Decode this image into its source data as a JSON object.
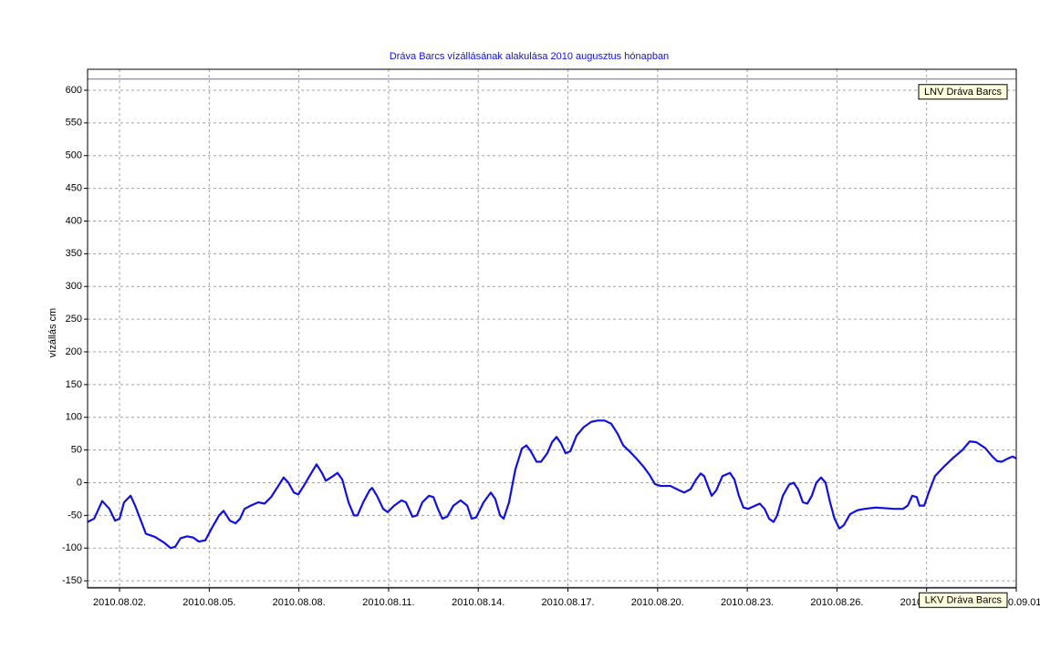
{
  "chart_data": {
    "type": "line",
    "title": "Dráva Barcs vízállásának alakulása 2010 augusztus hónapban",
    "ylabel": "vízállás cm",
    "color": "#1010e0",
    "grid": true,
    "xlim": [
      0.93,
      32
    ],
    "ylim": [
      -161,
      632
    ],
    "yticks": [
      -150,
      -100,
      -50,
      0,
      50,
      100,
      150,
      200,
      250,
      300,
      350,
      400,
      450,
      500,
      550,
      600
    ],
    "xticks": [
      {
        "value": 2,
        "label": "2010.08.02."
      },
      {
        "value": 5,
        "label": "2010.08.05."
      },
      {
        "value": 8,
        "label": "2010.08.08."
      },
      {
        "value": 11,
        "label": "2010.08.11."
      },
      {
        "value": 14,
        "label": "2010.08.14."
      },
      {
        "value": 17,
        "label": "2010.08.17."
      },
      {
        "value": 20,
        "label": "2010.08.20."
      },
      {
        "value": 23,
        "label": "2010.08.23."
      },
      {
        "value": 26,
        "label": "2010.08.26."
      },
      {
        "value": 29,
        "label": "2010.08.29."
      },
      {
        "value": 32,
        "label": "2010.09.01"
      }
    ],
    "reference_lines": [
      {
        "label": "LNV Dráva Barcs",
        "value": 617
      },
      {
        "label": "LKV Dráva Barcs",
        "value": -160
      }
    ],
    "x": [
      0.93,
      1.15,
      1.42,
      1.66,
      1.85,
      2.0,
      2.15,
      2.37,
      2.52,
      2.73,
      2.88,
      3.19,
      3.5,
      3.71,
      3.86,
      4.04,
      4.26,
      4.47,
      4.65,
      4.87,
      5.08,
      5.33,
      5.48,
      5.69,
      5.88,
      6.03,
      6.18,
      6.39,
      6.64,
      6.85,
      7.07,
      7.31,
      7.49,
      7.65,
      7.83,
      7.98,
      8.16,
      8.38,
      8.59,
      8.77,
      8.9,
      9.14,
      9.29,
      9.45,
      9.66,
      9.84,
      9.96,
      10.15,
      10.36,
      10.45,
      10.61,
      10.82,
      10.97,
      11.19,
      11.43,
      11.58,
      11.8,
      11.95,
      12.13,
      12.35,
      12.5,
      12.65,
      12.8,
      12.96,
      13.17,
      13.41,
      13.63,
      13.78,
      13.93,
      14.18,
      14.42,
      14.57,
      14.73,
      14.85,
      15.03,
      15.24,
      15.46,
      15.61,
      15.76,
      15.95,
      16.1,
      16.31,
      16.47,
      16.62,
      16.77,
      16.92,
      17.08,
      17.29,
      17.53,
      17.78,
      17.99,
      18.23,
      18.45,
      18.66,
      18.85,
      19.06,
      19.27,
      19.52,
      19.73,
      19.91,
      20.1,
      20.43,
      20.74,
      20.89,
      21.1,
      21.29,
      21.44,
      21.56,
      21.68,
      21.81,
      21.96,
      22.17,
      22.42,
      22.57,
      22.72,
      22.87,
      23.03,
      23.27,
      23.42,
      23.58,
      23.73,
      23.88,
      24.0,
      24.19,
      24.4,
      24.55,
      24.7,
      24.86,
      25.01,
      25.16,
      25.31,
      25.47,
      25.62,
      25.77,
      25.92,
      26.08,
      26.23,
      26.44,
      26.69,
      26.93,
      27.3,
      27.6,
      27.91,
      28.21,
      28.37,
      28.52,
      28.67,
      28.76,
      28.92,
      29.07,
      29.28,
      29.59,
      29.89,
      30.2,
      30.44,
      30.66,
      30.96,
      31.2,
      31.36,
      31.51,
      31.72,
      31.88,
      32.0
    ],
    "values": [
      -60,
      -55,
      -28,
      -40,
      -58,
      -55,
      -30,
      -20,
      -35,
      -60,
      -78,
      -83,
      -92,
      -100,
      -98,
      -85,
      -82,
      -84,
      -90,
      -88,
      -70,
      -50,
      -43,
      -58,
      -62,
      -55,
      -40,
      -35,
      -30,
      -32,
      -22,
      -5,
      8,
      0,
      -15,
      -18,
      -5,
      12,
      28,
      15,
      3,
      10,
      15,
      5,
      -30,
      -50,
      -50,
      -30,
      -12,
      -8,
      -20,
      -40,
      -45,
      -35,
      -27,
      -30,
      -52,
      -50,
      -30,
      -20,
      -22,
      -40,
      -55,
      -52,
      -35,
      -27,
      -35,
      -55,
      -53,
      -30,
      -15,
      -25,
      -50,
      -55,
      -30,
      20,
      52,
      57,
      48,
      32,
      32,
      45,
      62,
      70,
      60,
      45,
      48,
      72,
      85,
      93,
      95,
      95,
      90,
      75,
      57,
      48,
      38,
      25,
      12,
      -2,
      -5,
      -5,
      -12,
      -15,
      -10,
      5,
      14,
      10,
      -5,
      -20,
      -12,
      10,
      15,
      5,
      -20,
      -38,
      -40,
      -35,
      -32,
      -40,
      -55,
      -60,
      -50,
      -20,
      -3,
      0,
      -10,
      -30,
      -32,
      -20,
      0,
      8,
      0,
      -30,
      -55,
      -70,
      -65,
      -48,
      -42,
      -40,
      -38,
      -39,
      -40,
      -40,
      -35,
      -20,
      -22,
      -35,
      -35,
      -15,
      10,
      25,
      38,
      50,
      63,
      62,
      53,
      40,
      33,
      32,
      37,
      40,
      37
    ]
  }
}
